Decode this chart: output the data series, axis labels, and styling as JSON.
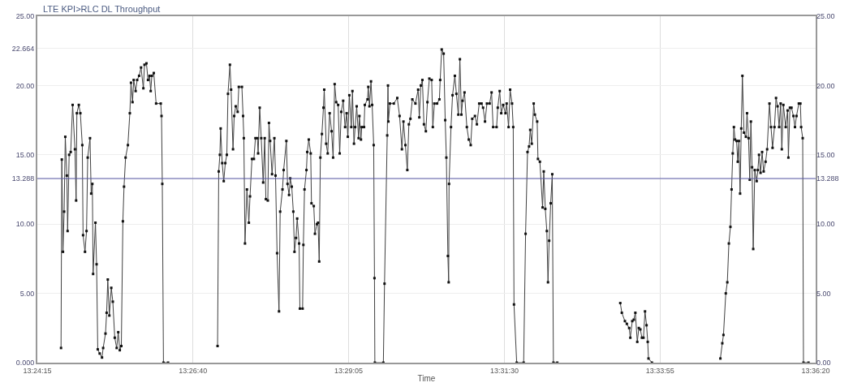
{
  "chart_data": {
    "type": "line",
    "title": "LTE KPI>RLC DL Throughput",
    "xlabel": "Time",
    "xlim": [
      13.404167,
      13.605556
    ],
    "xticks": [
      {
        "value": 13.404167,
        "label": "13:24:15"
      },
      {
        "value": 13.444444,
        "label": "13:26:40"
      },
      {
        "value": 13.484722,
        "label": "13:29:05"
      },
      {
        "value": 13.525,
        "label": "13:31:30"
      },
      {
        "value": 13.565278,
        "label": "13:33:55"
      },
      {
        "value": 13.605556,
        "label": "13:36:20"
      }
    ],
    "ylim": [
      0,
      25
    ],
    "yticks": [
      {
        "value": 0,
        "label": "0.000"
      },
      {
        "value": 5,
        "label": "5.00"
      },
      {
        "value": 10,
        "label": "10.00"
      },
      {
        "value": 13.288,
        "label": "13.288"
      },
      {
        "value": 15,
        "label": "15.00"
      },
      {
        "value": 20,
        "label": "20.00"
      },
      {
        "value": 22.664,
        "label": "22.664"
      },
      {
        "value": 25,
        "label": "25.00"
      }
    ],
    "y2lim": [
      0,
      25
    ],
    "y2ticks": [
      {
        "value": 0,
        "label": "0.00"
      },
      {
        "value": 5,
        "label": "5.00"
      },
      {
        "value": 10,
        "label": "10.00"
      },
      {
        "value": 13.288,
        "label": "13.288"
      },
      {
        "value": 15,
        "label": "15.00"
      },
      {
        "value": 20,
        "label": "20.00"
      },
      {
        "value": 25,
        "label": "25.00"
      }
    ],
    "grid": true,
    "marker": "square",
    "line_style": "solid",
    "ref_lines": [
      {
        "axis": "y",
        "value": 13.288,
        "color": "#5a5aa8"
      }
    ],
    "x": [
      13.4103,
      13.4105,
      13.4108,
      13.4111,
      13.4114,
      13.4118,
      13.412,
      13.4124,
      13.4128,
      13.4133,
      13.4139,
      13.4142,
      13.4144,
      13.4149,
      13.4153,
      13.4158,
      13.416,
      13.4165,
      13.4169,
      13.4172,
      13.4178,
      13.4181,
      13.4184,
      13.4186,
      13.4192,
      13.4195,
      13.4198,
      13.4203,
      13.4209,
      13.4212,
      13.4218,
      13.4221,
      13.4224,
      13.4228,
      13.4233,
      13.4237,
      13.4242,
      13.4247,
      13.4251,
      13.4255,
      13.4259,
      13.4263,
      13.4266,
      13.427,
      13.4276,
      13.4281,
      13.4284,
      13.4288,
      13.4291,
      13.4296,
      13.43,
      13.4305,
      13.431,
      13.4316,
      13.4319,
      13.4324,
      13.4328,
      13.4332,
      13.4335,
      13.4338,
      13.4343,
      13.4349,
      13.4361,
      13.4363,
      13.4365,
      13.4368,
      13.438,
      13.444,
      13.4508,
      13.4511,
      13.4514,
      13.4516,
      13.452,
      13.4524,
      13.4528,
      13.4532,
      13.4535,
      13.454,
      13.4543,
      13.4548,
      13.4551,
      13.4555,
      13.456,
      13.4563,
      13.4571,
      13.4574,
      13.4576,
      13.4579,
      13.4584,
      13.4589,
      13.4592,
      13.4597,
      13.4602,
      13.4606,
      13.4611,
      13.4613,
      13.4617,
      13.4621,
      13.4626,
      13.463,
      13.4633,
      13.4638,
      13.4641,
      13.4644,
      13.4649,
      13.4655,
      13.4658,
      13.4662,
      13.4667,
      13.467,
      13.4676,
      13.4679,
      13.4686,
      13.4689,
      13.4693,
      13.4696,
      13.47,
      13.4704,
      13.4707,
      13.4711,
      13.4714,
      13.4719,
      13.4721,
      13.4728,
      13.473,
      13.4733,
      13.4738,
      13.474,
      13.4744,
      13.4749,
      13.4751,
      13.4757,
      13.476,
      13.4765,
      13.4768,
      13.4771,
      13.4774,
      13.4778,
      13.4782,
      13.4784,
      13.4789,
      13.4793,
      13.4798,
      13.4803,
      13.4807,
      13.4811,
      13.4815,
      13.482,
      13.4824,
      13.4828,
      13.4833,
      13.4838,
      13.4842,
      13.4845,
      13.4849,
      13.4854,
      13.4857,
      13.4861,
      13.4864,
      13.4868,
      13.4873,
      13.4875,
      13.4879,
      13.4881,
      13.4887,
      13.4889,
      13.4896,
      13.4898,
      13.4901,
      13.4905,
      13.4908,
      13.4912,
      13.4914,
      13.4915,
      13.4937,
      13.494,
      13.4947,
      13.4949,
      13.495,
      13.4954,
      13.4964,
      13.4973,
      13.4979,
      13.4985,
      13.4989,
      13.4994,
      13.4999,
      13.5003,
      13.5007,
      13.5012,
      13.502,
      13.5027,
      13.503,
      13.5034,
      13.5038,
      13.5042,
      13.5047,
      13.5051,
      13.5056,
      13.5062,
      13.5065,
      13.5069,
      13.5076,
      13.5082,
      13.5084,
      13.5088,
      13.5093,
      13.5097,
      13.51,
      13.5104,
      13.5106,
      13.5107,
      13.5112,
      13.5116,
      13.5122,
      13.5126,
      13.5131,
      13.5135,
      13.5139,
      13.5142,
      13.5147,
      13.5153,
      13.5158,
      13.5163,
      13.5167,
      13.5174,
      13.5179,
      13.5185,
      13.5191,
      13.5195,
      13.52,
      13.5205,
      13.5212,
      13.5217,
      13.5221,
      13.523,
      13.5233,
      13.5238,
      13.5242,
      13.5247,
      13.5253,
      13.5256,
      13.5261,
      13.5265,
      13.527,
      13.5273,
      13.5275,
      13.5282,
      13.53,
      13.5305,
      13.531,
      13.5314,
      13.5317,
      13.5321,
      13.5326,
      13.5329,
      13.5335,
      13.5337,
      13.5342,
      13.5349,
      13.5352,
      13.5356,
      13.536,
      13.5363,
      13.5366,
      13.537,
      13.5374,
      13.5377,
      13.5387,
      13.546,
      13.555,
      13.5554,
      13.5562,
      13.5567,
      13.5573,
      13.5576,
      13.5581,
      13.5585,
      13.5589,
      13.5594,
      13.5598,
      13.5602,
      13.5606,
      13.561,
      13.5614,
      13.5618,
      13.5621,
      13.5623,
      13.5632,
      13.572,
      13.5809,
      13.5814,
      13.5817,
      13.5823,
      13.5827,
      13.5831,
      13.5835,
      13.5838,
      13.5841,
      13.5844,
      13.5847,
      13.5851,
      13.5854,
      13.5857,
      13.586,
      13.5863,
      13.5866,
      13.587,
      13.5875,
      13.5878,
      13.5882,
      13.5885,
      13.5888,
      13.5891,
      13.5894,
      13.5898,
      13.5903,
      13.5906,
      13.5909,
      13.5913,
      13.5917,
      13.5921,
      13.5926,
      13.593,
      13.5936,
      13.594,
      13.5944,
      13.5949,
      13.5953,
      13.5957,
      13.5961,
      13.5965,
      13.5968,
      13.5972,
      13.5978,
      13.5983,
      13.5985,
      13.5989,
      13.5993,
      13.5998,
      13.6002,
      13.6006,
      13.6012,
      13.6016,
      13.6018,
      13.6022,
      13.6024,
      13.6037
    ],
    "series": [
      {
        "color": "#404040",
        "values": [
          1.06,
          14.66,
          8.0,
          10.9,
          16.3,
          13.5,
          9.5,
          15.0,
          15.2,
          18.6,
          15.4,
          11.7,
          18.0,
          18.6,
          18.0,
          15.7,
          9.2,
          8.0,
          9.5,
          14.8,
          16.2,
          12.2,
          12.9,
          6.4,
          10.1,
          7.1,
          0.96,
          0.66,
          0.37,
          1.06,
          2.1,
          3.6,
          6.0,
          3.4,
          5.4,
          4.4,
          1.8,
          1.06,
          2.2,
          0.9,
          1.2,
          10.2,
          12.7,
          14.8,
          15.7,
          18.0,
          20.2,
          18.8,
          20.4,
          19.6,
          20.4,
          20.7,
          21.3,
          19.8,
          21.5,
          21.6,
          20.4,
          20.7,
          19.6,
          20.7,
          20.9,
          18.7,
          18.7,
          17.8,
          12.9,
          0,
          0,
          null,
          1.2,
          13.8,
          15.0,
          16.9,
          14.4,
          13.1,
          14.4,
          15.0,
          19.4,
          21.5,
          19.7,
          15.4,
          17.8,
          18.5,
          18.1,
          19.9,
          19.9,
          17.8,
          16.2,
          8.6,
          12.5,
          10.1,
          12.0,
          14.7,
          14.7,
          16.2,
          16.2,
          15.1,
          18.4,
          16.2,
          13.0,
          16.2,
          11.8,
          11.7,
          17.3,
          16.0,
          13.6,
          16.2,
          13.5,
          7.9,
          3.7,
          10.9,
          12.5,
          13.9,
          16.0,
          12.9,
          12.1,
          13.3,
          12.7,
          10.9,
          8.0,
          9.0,
          10.4,
          8.6,
          3.9,
          3.9,
          8.5,
          12.5,
          13.9,
          15.2,
          16.1,
          15.1,
          11.5,
          11.3,
          9.3,
          10.0,
          10.1,
          7.3,
          14.8,
          16.5,
          18.4,
          19.7,
          15.8,
          15.1,
          18.0,
          16.7,
          14.8,
          20.1,
          18.8,
          18.6,
          15.1,
          18.1,
          18.9,
          17.0,
          18.0,
          16.3,
          19.3,
          17.0,
          19.6,
          15.8,
          17.0,
          18.5,
          16.2,
          17.8,
          16.1,
          17.0,
          17.0,
          18.6,
          19.0,
          19.9,
          18.5,
          20.3,
          18.6,
          15.7,
          6.1,
          0,
          0,
          5.7,
          16.4,
          20.0,
          17.4,
          18.7,
          18.7,
          19.1,
          17.8,
          15.4,
          17.4,
          15.7,
          13.9,
          17.2,
          17.6,
          19.0,
          18.7,
          19.7,
          17.7,
          20.0,
          20.4,
          17.2,
          16.7,
          18.8,
          20.5,
          20.4,
          17.0,
          18.7,
          18.7,
          19.0,
          20.4,
          22.6,
          22.3,
          17.5,
          14.8,
          7.7,
          5.8,
          12.9,
          17.0,
          19.3,
          20.7,
          19.4,
          17.9,
          21.9,
          17.9,
          18.9,
          19.5,
          17.0,
          16.1,
          15.7,
          17.6,
          17.8,
          17.2,
          18.7,
          18.7,
          18.4,
          17.4,
          18.7,
          18.7,
          19.5,
          17.0,
          17.0,
          18.4,
          19.6,
          18.0,
          18.6,
          18.0,
          18.7,
          17.0,
          19.7,
          18.7,
          17.0,
          4.2,
          0,
          0,
          9.3,
          15.2,
          15.6,
          16.8,
          15.8,
          18.7,
          17.9,
          17.4,
          14.7,
          14.5,
          11.2,
          13.8,
          11.1,
          9.5,
          5.8,
          8.8,
          11.5,
          13.6,
          0,
          0,
          null,
          4.3,
          3.6,
          3.0,
          2.8,
          2.5,
          1.8,
          3.0,
          3.1,
          3.6,
          1.5,
          2.5,
          2.4,
          1.8,
          1.8,
          3.7,
          2.7,
          1.5,
          0.3,
          0,
          null,
          0.3,
          1.4,
          2.0,
          5.0,
          5.8,
          8.6,
          9.8,
          12.5,
          15.1,
          17.0,
          16.1,
          16.0,
          14.5,
          16.0,
          12.2,
          16.9,
          20.7,
          16.6,
          16.3,
          18.0,
          16.2,
          13.2,
          17.4,
          14.1,
          8.2,
          13.9,
          13.1,
          13.9,
          15.0,
          13.7,
          15.2,
          13.8,
          14.5,
          15.4,
          18.7,
          17.0,
          15.5,
          17.0,
          19.1,
          18.5,
          17.0,
          18.7,
          15.4,
          18.6,
          17.0,
          18.2,
          14.8,
          18.4,
          18.4,
          17.8,
          17.0,
          17.8,
          18.7,
          18.7,
          17.0,
          16.2,
          0,
          0
        ]
      }
    ]
  }
}
